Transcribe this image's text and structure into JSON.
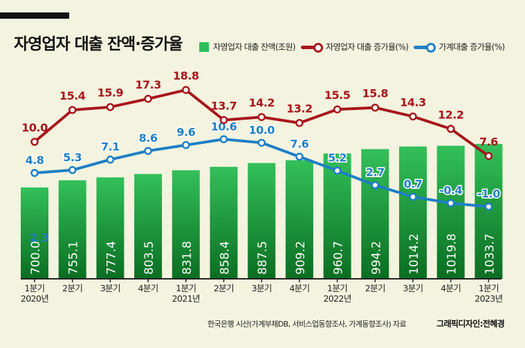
{
  "title": "자영업자 대출 잔액·증가율",
  "source": "한국은행 시산(가계부채DB, 서비스업동향조사, 가계동향조사) 자료",
  "credit": "그래픽디자인:전혜경",
  "chart_data": {
    "type": "bar+line",
    "title": "자영업자 대출 잔액·증가율",
    "categories": [
      [
        "1분기",
        "2020년"
      ],
      [
        "2분기",
        ""
      ],
      [
        "3분기",
        ""
      ],
      [
        "4분기",
        ""
      ],
      [
        "1분기",
        "2021년"
      ],
      [
        "2분기",
        ""
      ],
      [
        "3분기",
        ""
      ],
      [
        "4분기",
        ""
      ],
      [
        "1분기",
        "2022년"
      ],
      [
        "2분기",
        ""
      ],
      [
        "3분기",
        ""
      ],
      [
        "4분기",
        ""
      ],
      [
        "1분기",
        "2023년"
      ]
    ],
    "series": [
      {
        "name": "자영업자 대출 잔액(조원)",
        "type": "bar",
        "color": "#1f9a3e",
        "values": [
          700.0,
          755.1,
          777.4,
          803.5,
          831.8,
          858.4,
          887.5,
          909.2,
          960.7,
          994.2,
          1014.2,
          1019.8,
          1033.7
        ]
      },
      {
        "name": "자영업자 대출 증가율(%)",
        "type": "line",
        "color": "#a8151b",
        "values": [
          10.0,
          15.4,
          15.9,
          17.3,
          18.8,
          13.7,
          14.2,
          13.2,
          15.5,
          15.8,
          14.3,
          12.2,
          7.6
        ]
      },
      {
        "name": "가계대출 증가율(%)",
        "type": "line",
        "color": "#1e7fc6",
        "values": [
          4.8,
          5.3,
          7.1,
          8.6,
          9.6,
          10.6,
          10.0,
          7.6,
          5.2,
          2.7,
          0.7,
          -0.4,
          -1.0
        ]
      }
    ],
    "stray_label": "2.3",
    "legend": "top",
    "grid": false
  }
}
